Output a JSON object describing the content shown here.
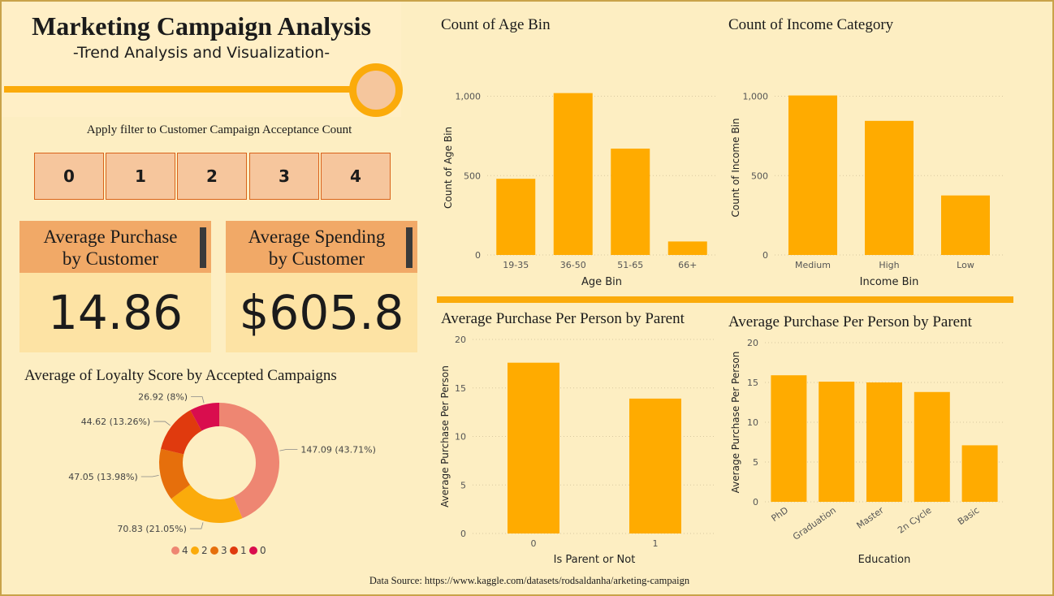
{
  "header": {
    "title": "Marketing Campaign Analysis",
    "subtitle": "-Trend Analysis and Visualization-"
  },
  "filter": {
    "label": "Apply filter to Customer Campaign Acceptance Count",
    "buttons": [
      "0",
      "1",
      "2",
      "3",
      "4"
    ]
  },
  "kpis": [
    {
      "line1": "Average Purchase",
      "line2": "by Customer",
      "value": "14.86"
    },
    {
      "line1": "Average Spending",
      "line2": "by Customer",
      "value": "$605.8"
    }
  ],
  "colors": {
    "bar": "#ffab00",
    "donut": [
      "#ee8672",
      "#fbab0b",
      "#e66f0c",
      "#e03a0e",
      "#d90d4e"
    ]
  },
  "chart_data": [
    {
      "id": "age",
      "type": "bar",
      "title": "Count of Age Bin",
      "xlabel": "Age Bin",
      "ylabel": "Count of Age Bin",
      "categories": [
        "19-35",
        "36-50",
        "51-65",
        "66+"
      ],
      "values": [
        480,
        1020,
        670,
        85
      ],
      "ylim": [
        0,
        1100
      ],
      "yticks": [
        0,
        500,
        1000
      ],
      "yticklabels": [
        "0",
        "500",
        "1,000"
      ],
      "grid": true
    },
    {
      "id": "income",
      "type": "bar",
      "title": "Count of Income Category",
      "xlabel": "Income Bin",
      "ylabel": "Count of Income Bin",
      "categories": [
        "Medium",
        "High",
        "Low"
      ],
      "values": [
        1005,
        845,
        375
      ],
      "ylim": [
        0,
        1100
      ],
      "yticks": [
        0,
        500,
        1000
      ],
      "yticklabels": [
        "0",
        "500",
        "1,000"
      ],
      "grid": true
    },
    {
      "id": "parent",
      "type": "bar",
      "title": "Average Purchase Per Person by Parent",
      "xlabel": "Is Parent or Not",
      "ylabel": "Average Purchase Per Person",
      "categories": [
        "0",
        "1"
      ],
      "values": [
        17.6,
        13.9
      ],
      "ylim": [
        0,
        20
      ],
      "yticks": [
        0,
        5,
        10,
        15,
        20
      ],
      "yticklabels": [
        "0",
        "5",
        "10",
        "15",
        "20"
      ],
      "grid": true
    },
    {
      "id": "education",
      "type": "bar",
      "title": "Average Purchase Per Person by Parent",
      "xlabel": "Education",
      "ylabel": "Average Purchase Per Person",
      "categories": [
        "PhD",
        "Graduation",
        "Master",
        "2n Cycle",
        "Basic"
      ],
      "values": [
        15.9,
        15.1,
        15.0,
        13.8,
        7.1
      ],
      "ylim": [
        0,
        20
      ],
      "yticks": [
        0,
        5,
        10,
        15,
        20
      ],
      "yticklabels": [
        "0",
        "5",
        "10",
        "15",
        "20"
      ],
      "grid": true
    },
    {
      "id": "loyalty",
      "type": "pie",
      "title": "Average of Loyalty Score by Accepted Campaigns",
      "labels": [
        "4",
        "2",
        "3",
        "1",
        "0"
      ],
      "values": [
        147.09,
        70.83,
        47.05,
        44.62,
        26.92
      ],
      "data_labels": [
        "147.09 (43.71%)",
        "70.83 (21.05%)",
        "47.05 (13.98%)",
        "44.62 (13.26%)",
        "26.92 (8%)"
      ],
      "legend": "bottom"
    }
  ],
  "footer": {
    "source": "Data Source: https://www.kaggle.com/datasets/rodsaldanha/arketing-campaign"
  }
}
